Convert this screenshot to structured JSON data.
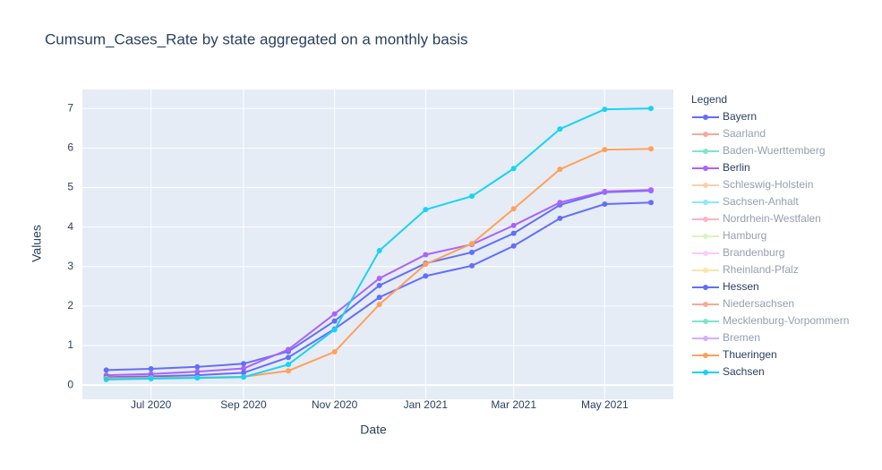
{
  "chart_data": {
    "type": "line",
    "title": "Cumsum_Cases_Rate by state aggregated on a monthly basis",
    "x_label": "Date",
    "y_label": "Values",
    "legend_title": "Legend",
    "x": [
      "2020-06",
      "2020-07",
      "2020-08",
      "2020-09",
      "2020-10",
      "2020-11",
      "2020-12",
      "2021-01",
      "2021-02",
      "2021-03",
      "2021-04",
      "2021-05",
      "2021-06"
    ],
    "xlim": [
      "2020-05-16",
      "2021-06-16"
    ],
    "xticks": [
      {
        "value": "2020-07",
        "label": "Jul 2020"
      },
      {
        "value": "2020-09",
        "label": "Sep 2020"
      },
      {
        "value": "2020-11",
        "label": "Nov 2020"
      },
      {
        "value": "2021-01",
        "label": "Jan 2021"
      },
      {
        "value": "2021-03",
        "label": "Mar 2021"
      },
      {
        "value": "2021-05",
        "label": "May 2021"
      }
    ],
    "ylim": [
      -0.36,
      7.48
    ],
    "yticks": [
      0,
      1,
      2,
      3,
      4,
      5,
      6,
      7
    ],
    "grid": true,
    "series": [
      {
        "name": "Bayern",
        "color": "#636efa",
        "values": [
          0.38,
          0.41,
          0.46,
          0.54,
          0.85,
          1.62,
          2.52,
          3.08,
          3.36,
          3.84,
          4.56,
          4.88,
          4.92
        ]
      },
      {
        "name": "Saarland",
        "color": "#EF553B",
        "visible": "legendonly"
      },
      {
        "name": "Baden-Wuerttemberg",
        "color": "#00cc96",
        "visible": "legendonly"
      },
      {
        "name": "Berlin",
        "color": "#ab63fa",
        "values": [
          0.25,
          0.28,
          0.34,
          0.42,
          0.9,
          1.8,
          2.7,
          3.3,
          3.56,
          4.04,
          4.62,
          4.9,
          4.94
        ]
      },
      {
        "name": "Schleswig-Holstein",
        "color": "#FFA15A",
        "visible": "legendonly"
      },
      {
        "name": "Sachsen-Anhalt",
        "color": "#19d3f3",
        "visible": "legendonly"
      },
      {
        "name": "Nordrhein-Westfalen",
        "color": "#FF6692",
        "visible": "legendonly"
      },
      {
        "name": "Hamburg",
        "color": "#B6E880",
        "visible": "legendonly"
      },
      {
        "name": "Brandenburg",
        "color": "#FF97FF",
        "visible": "legendonly"
      },
      {
        "name": "Rheinland-Pfalz",
        "color": "#FECB52",
        "visible": "legendonly"
      },
      {
        "name": "Hessen",
        "color": "#636efa",
        "values": [
          0.2,
          0.22,
          0.25,
          0.31,
          0.7,
          1.42,
          2.22,
          2.76,
          3.02,
          3.52,
          4.22,
          4.58,
          4.62
        ]
      },
      {
        "name": "Niedersachsen",
        "color": "#EF553B",
        "visible": "legendonly"
      },
      {
        "name": "Mecklenburg-Vorpommern",
        "color": "#00cc96",
        "visible": "legendonly"
      },
      {
        "name": "Bremen",
        "color": "#ab63fa",
        "visible": "legendonly"
      },
      {
        "name": "Thueringen",
        "color": "#FFA15A",
        "values": [
          0.17,
          0.18,
          0.19,
          0.21,
          0.36,
          0.84,
          2.04,
          3.06,
          3.58,
          4.46,
          5.46,
          5.96,
          5.98
        ]
      },
      {
        "name": "Sachsen",
        "color": "#19d3f3",
        "values": [
          0.14,
          0.16,
          0.18,
          0.2,
          0.52,
          1.4,
          3.4,
          4.44,
          4.78,
          5.48,
          6.48,
          6.98,
          7.0
        ]
      }
    ]
  }
}
